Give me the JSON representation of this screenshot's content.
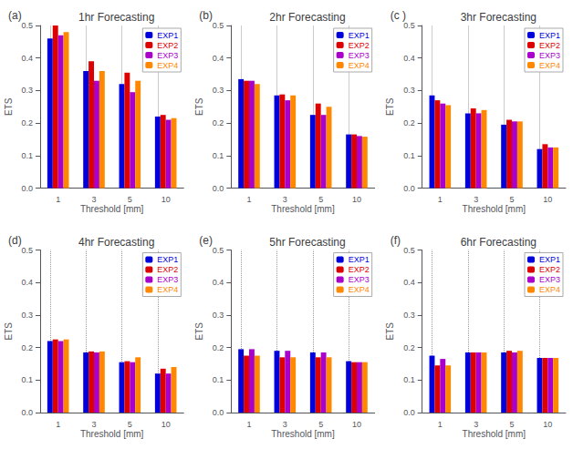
{
  "chart_data": [
    {
      "type": "bar",
      "title": "1hr Forecasting",
      "annotations": [
        "(a)"
      ],
      "xlabel": "Threshold [mm]",
      "ylabel": "ETS",
      "categories": [
        "1",
        "3",
        "5",
        "10"
      ],
      "series": [
        {
          "name": "EXP1",
          "color": "#0000dd",
          "values": [
            0.46,
            0.36,
            0.32,
            0.22
          ]
        },
        {
          "name": "EXP2",
          "color": "#dd0000",
          "values": [
            0.5,
            0.39,
            0.355,
            0.225
          ]
        },
        {
          "name": "EXP3",
          "color": "#aa00cc",
          "values": [
            0.47,
            0.33,
            0.295,
            0.21
          ]
        },
        {
          "name": "EXP4",
          "color": "#ff8800",
          "values": [
            0.48,
            0.36,
            0.33,
            0.215
          ]
        }
      ],
      "ylim": [
        0.0,
        0.5
      ],
      "yticks": [
        {
          "value": 0.0,
          "label": "0.0"
        },
        0.1,
        0.2,
        0.3,
        0.4,
        0.5
      ],
      "grid": "x",
      "legend": "upper right"
    },
    {
      "type": "bar",
      "title": "2hr Forecasting",
      "annotations": [
        "(b)"
      ],
      "xlabel": "Threshold [mm]",
      "ylabel": "ETS",
      "categories": [
        "1",
        "3",
        "5",
        "10"
      ],
      "series": [
        {
          "name": "EXP1",
          "color": "#0000dd",
          "values": [
            0.335,
            0.285,
            0.225,
            0.165
          ]
        },
        {
          "name": "EXP2",
          "color": "#dd0000",
          "values": [
            0.33,
            0.288,
            0.26,
            0.165
          ]
        },
        {
          "name": "EXP3",
          "color": "#aa00cc",
          "values": [
            0.33,
            0.27,
            0.225,
            0.16
          ]
        },
        {
          "name": "EXP4",
          "color": "#ff8800",
          "values": [
            0.32,
            0.285,
            0.25,
            0.158
          ]
        }
      ],
      "ylim": [
        0.0,
        0.5
      ],
      "yticks": [
        {
          "value": 0.0,
          "label": "0.0"
        },
        0.1,
        0.2,
        0.3,
        0.4,
        0.5
      ],
      "grid": "x",
      "legend": "upper right"
    },
    {
      "type": "bar",
      "title": "3hr Forecasting",
      "annotations": [
        "(c )"
      ],
      "xlabel": "Threshold [mm]",
      "ylabel": "ETS",
      "categories": [
        "1",
        "3",
        "5",
        "10"
      ],
      "series": [
        {
          "name": "EXP1",
          "color": "#0000dd",
          "values": [
            0.285,
            0.23,
            0.195,
            0.12
          ]
        },
        {
          "name": "EXP2",
          "color": "#dd0000",
          "values": [
            0.27,
            0.245,
            0.21,
            0.135
          ]
        },
        {
          "name": "EXP3",
          "color": "#aa00cc",
          "values": [
            0.26,
            0.23,
            0.205,
            0.125
          ]
        },
        {
          "name": "EXP4",
          "color": "#ff8800",
          "values": [
            0.255,
            0.24,
            0.205,
            0.125
          ]
        }
      ],
      "ylim": [
        0.0,
        0.5
      ],
      "yticks": [
        {
          "value": 0.0,
          "label": "0.0"
        },
        0.1,
        0.2,
        0.3,
        0.4,
        0.5
      ],
      "grid": "x",
      "legend": "upper right"
    },
    {
      "type": "bar",
      "title": "4hr Forecasting",
      "annotations": [
        "(d)"
      ],
      "xlabel": "Threshold [mm]",
      "ylabel": "ETS",
      "categories": [
        "1",
        "3",
        "5",
        "10"
      ],
      "series": [
        {
          "name": "EXP1",
          "color": "#0000dd",
          "values": [
            0.22,
            0.185,
            0.155,
            0.12
          ]
        },
        {
          "name": "EXP2",
          "color": "#dd0000",
          "values": [
            0.225,
            0.188,
            0.158,
            0.135
          ]
        },
        {
          "name": "EXP3",
          "color": "#aa00cc",
          "values": [
            0.22,
            0.185,
            0.155,
            0.12
          ]
        },
        {
          "name": "EXP4",
          "color": "#ff8800",
          "values": [
            0.225,
            0.188,
            0.17,
            0.14
          ]
        }
      ],
      "ylim": [
        0.0,
        0.5
      ],
      "yticks": [
        {
          "value": 0.0,
          "label": "0.0"
        },
        0.1,
        0.2,
        0.3,
        0.4,
        0.5
      ],
      "grid": "x",
      "legend": "upper right"
    },
    {
      "type": "bar",
      "title": "5hr Forecasting",
      "annotations": [
        "(e)"
      ],
      "xlabel": "Threshold [mm]",
      "ylabel": "ETS",
      "categories": [
        "1",
        "3",
        "5",
        "10"
      ],
      "series": [
        {
          "name": "EXP1",
          "color": "#0000dd",
          "values": [
            0.195,
            0.19,
            0.185,
            0.158
          ]
        },
        {
          "name": "EXP2",
          "color": "#dd0000",
          "values": [
            0.175,
            0.17,
            0.17,
            0.155
          ]
        },
        {
          "name": "EXP3",
          "color": "#aa00cc",
          "values": [
            0.195,
            0.19,
            0.185,
            0.155
          ]
        },
        {
          "name": "EXP4",
          "color": "#ff8800",
          "values": [
            0.175,
            0.17,
            0.17,
            0.155
          ]
        }
      ],
      "ylim": [
        0.0,
        0.5
      ],
      "yticks": [
        {
          "value": 0.0,
          "label": "0.0"
        },
        0.1,
        0.2,
        0.3,
        0.4,
        0.5
      ],
      "grid": "x",
      "legend": "upper right"
    },
    {
      "type": "bar",
      "title": "6hr Forecasting",
      "annotations": [
        "(f)"
      ],
      "xlabel": "Threshold [mm]",
      "ylabel": "ETS",
      "categories": [
        "1",
        "3",
        "5",
        "10"
      ],
      "series": [
        {
          "name": "EXP1",
          "color": "#0000dd",
          "values": [
            0.175,
            0.185,
            0.185,
            0.168
          ]
        },
        {
          "name": "EXP2",
          "color": "#dd0000",
          "values": [
            0.145,
            0.185,
            0.19,
            0.168
          ]
        },
        {
          "name": "EXP3",
          "color": "#aa00cc",
          "values": [
            0.165,
            0.185,
            0.185,
            0.168
          ]
        },
        {
          "name": "EXP4",
          "color": "#ff8800",
          "values": [
            0.145,
            0.185,
            0.19,
            0.168
          ]
        }
      ],
      "ylim": [
        0.0,
        0.5
      ],
      "yticks": [
        {
          "value": 0.0,
          "label": "0.0"
        },
        0.1,
        0.2,
        0.3,
        0.4,
        0.5
      ],
      "grid": "x",
      "legend": "upper right"
    }
  ]
}
